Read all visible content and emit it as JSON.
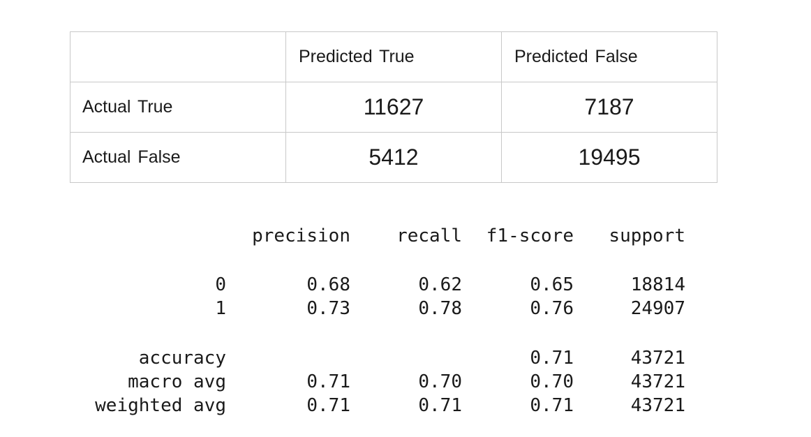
{
  "confusion_matrix": {
    "col_headers": [
      "",
      "Predicted  True",
      "Predicted  False"
    ],
    "rows": [
      {
        "label": "Actual  True",
        "values": [
          "11627",
          "7187"
        ]
      },
      {
        "label": "Actual  False",
        "values": [
          "5412",
          "19495"
        ]
      }
    ]
  },
  "classification_report": {
    "headers": [
      "precision",
      "recall",
      "f1-score",
      "support"
    ],
    "rows": [
      {
        "label": "0",
        "precision": "0.68",
        "recall": "0.62",
        "f1": "0.65",
        "support": "18814"
      },
      {
        "label": "1",
        "precision": "0.73",
        "recall": "0.78",
        "f1": "0.76",
        "support": "24907"
      },
      {
        "label": "accuracy",
        "precision": "",
        "recall": "",
        "f1": "0.71",
        "support": "43721"
      },
      {
        "label": "macro avg",
        "precision": "0.71",
        "recall": "0.70",
        "f1": "0.70",
        "support": "43721"
      },
      {
        "label": "weighted avg",
        "precision": "0.71",
        "recall": "0.71",
        "f1": "0.71",
        "support": "43721"
      }
    ]
  }
}
